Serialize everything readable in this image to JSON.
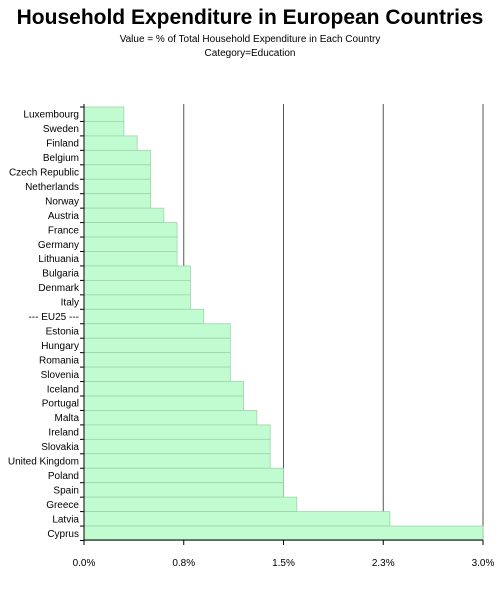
{
  "chart_data": {
    "type": "bar",
    "orientation": "horizontal",
    "title": "Household Expenditure in European Countries",
    "subtitle_lines": [
      "Value = % of Total Household Expenditure in Each Country",
      "Category=Education"
    ],
    "categories": [
      "Luxembourg",
      "Sweden",
      "Finland",
      "Belgium",
      "Czech Republic",
      "Netherlands",
      "Norway",
      "Austria",
      "France",
      "Germany",
      "Lithuania",
      "Bulgaria",
      "Denmark",
      "Italy",
      "--- EU25 ---",
      "Estonia",
      "Hungary",
      "Romania",
      "Slovenia",
      "Iceland",
      "Portugal",
      "Malta",
      "Ireland",
      "Slovakia",
      "United Kingdom",
      "Poland",
      "Spain",
      "Greece",
      "Latvia",
      "Cyprus"
    ],
    "values": [
      0.3,
      0.3,
      0.4,
      0.5,
      0.5,
      0.5,
      0.5,
      0.6,
      0.7,
      0.7,
      0.7,
      0.8,
      0.8,
      0.8,
      0.9,
      1.1,
      1.1,
      1.1,
      1.1,
      1.2,
      1.2,
      1.3,
      1.4,
      1.4,
      1.4,
      1.5,
      1.5,
      1.6,
      2.3,
      3.0
    ],
    "xlim": [
      0,
      3.0
    ],
    "xticks": [
      0,
      0.75,
      1.5,
      2.25,
      3.0
    ],
    "xtick_labels": [
      "0.0%",
      "0.8%",
      "1.5%",
      "2.3%",
      "3.0%"
    ],
    "xlabel": "",
    "ylabel": "",
    "grid": "vertical",
    "bar_color": "#c0fcd0",
    "bar_edge_color": "#9fd3ad"
  }
}
